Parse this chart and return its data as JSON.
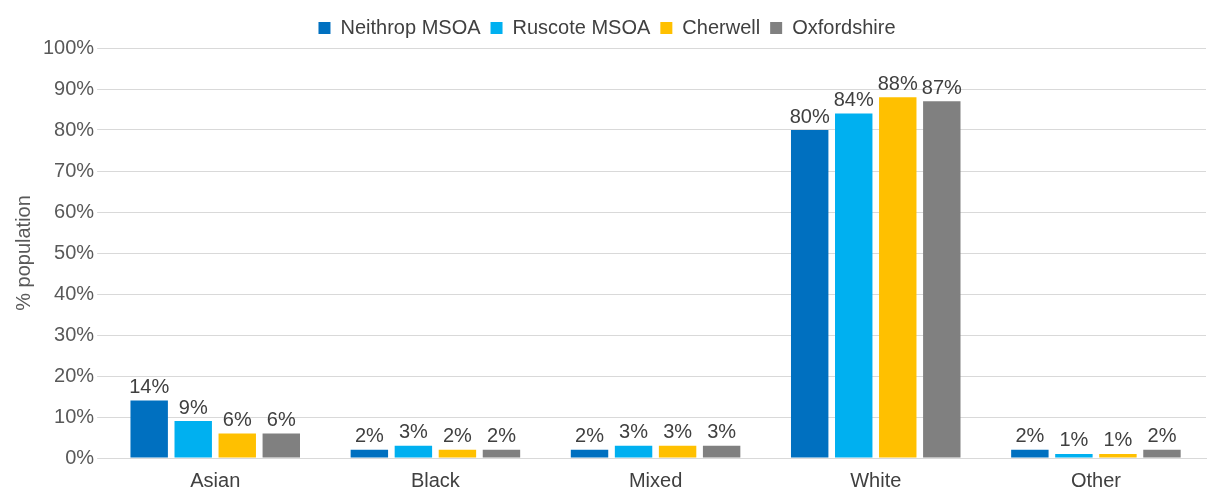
{
  "chart_data": {
    "type": "bar",
    "ylabel": "% population",
    "categories": [
      "Asian",
      "Black",
      "Mixed",
      "White",
      "Other"
    ],
    "series": [
      {
        "name": "Neithrop MSOA",
        "color": "#0070c0",
        "values": [
          14,
          2,
          2,
          80,
          2
        ],
        "value_labels": [
          "14%",
          "2%",
          "2%",
          "80%",
          "2%"
        ]
      },
      {
        "name": "Ruscote MSOA",
        "color": "#00b0f0",
        "values": [
          9,
          3,
          3,
          84,
          1
        ],
        "value_labels": [
          "9%",
          "3%",
          "3%",
          "84%",
          "1%"
        ]
      },
      {
        "name": "Cherwell",
        "color": "#ffc000",
        "values": [
          6,
          2,
          3,
          88,
          1
        ],
        "value_labels": [
          "6%",
          "2%",
          "3%",
          "88%",
          "1%"
        ]
      },
      {
        "name": "Oxfordshire",
        "color": "#808080",
        "values": [
          6,
          2,
          3,
          87,
          2
        ],
        "value_labels": [
          "6%",
          "2%",
          "3%",
          "87%",
          "2%"
        ]
      }
    ],
    "ylim": [
      0,
      100
    ],
    "yticks": [
      {
        "value": 0,
        "label": "0%"
      },
      {
        "value": 10,
        "label": "10%"
      },
      {
        "value": 20,
        "label": "20%"
      },
      {
        "value": 30,
        "label": "30%"
      },
      {
        "value": 40,
        "label": "40%"
      },
      {
        "value": 50,
        "label": "50%"
      },
      {
        "value": 60,
        "label": "60%"
      },
      {
        "value": 70,
        "label": "70%"
      },
      {
        "value": 80,
        "label": "80%"
      },
      {
        "value": 90,
        "label": "90%"
      },
      {
        "value": 100,
        "label": "100%"
      }
    ],
    "grid": "y",
    "legend": "top"
  }
}
